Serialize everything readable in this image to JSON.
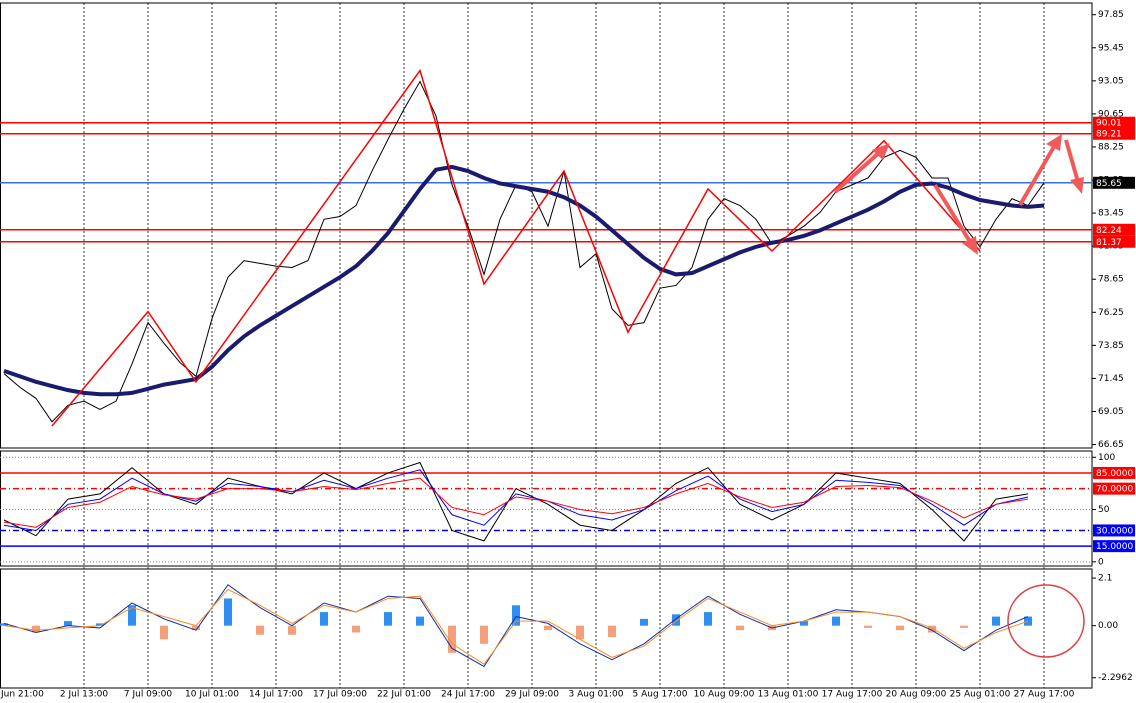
{
  "chart_data": [
    {
      "type": "line",
      "categories": [
        null,
        "Jun 21:00",
        null,
        null,
        null,
        "2 Jul 13:00",
        null,
        null,
        null,
        "7 Jul 09:00",
        null,
        null,
        null,
        "10 Jul 01:00",
        null,
        null,
        null,
        "14 Jul 17:00",
        null,
        null,
        null,
        "17 Jul 09:00",
        null,
        null,
        null,
        "22 Jul 01:00",
        null,
        null,
        null,
        "24 Jul 17:00",
        null,
        null,
        null,
        "29 Jul 09:00",
        null,
        null,
        null,
        "3 Aug 01:00",
        null,
        null,
        null,
        "5 Aug 17:00",
        null,
        null,
        null,
        "10 Aug 09:00",
        null,
        null,
        null,
        "13 Aug 01:00",
        null,
        null,
        null,
        "17 Aug 17:00",
        null,
        null,
        null,
        "20 Aug 09:00",
        null,
        null,
        null,
        "25 Aug 01:00",
        null,
        null,
        null,
        "27 Aug 17:00"
      ],
      "series": [
        {
          "color": "#000000",
          "values": [
            71.8,
            70.8,
            70.0,
            68.3,
            69.5,
            69.8,
            69.2,
            69.8,
            72.5,
            75.5,
            74.0,
            72.6,
            71.6,
            75.8,
            78.8,
            80.0,
            79.8,
            79.6,
            79.5,
            80.0,
            83.0,
            83.2,
            84.0,
            86.5,
            88.8,
            91.0,
            93.0,
            90.5,
            85.5,
            82.5,
            79.0,
            83.0,
            85.5,
            85.0,
            82.5,
            86.5,
            79.5,
            80.5,
            76.5,
            75.3,
            75.5,
            78.0,
            78.2,
            79.5,
            83.0,
            84.5,
            84.0,
            83.0,
            81.2,
            81.8,
            82.5,
            83.5,
            85.0,
            85.5,
            86.0,
            87.5,
            88.0,
            87.5,
            86.0,
            86.0,
            82.5,
            81.0,
            83.0,
            84.5,
            84.0,
            85.65
          ]
        },
        {
          "color": "#1a1a6e",
          "values": [
            72.0,
            71.6,
            71.2,
            70.9,
            70.6,
            70.4,
            70.3,
            70.3,
            70.4,
            70.7,
            71.0,
            71.2,
            71.4,
            72.3,
            73.5,
            74.5,
            75.3,
            76.0,
            76.7,
            77.4,
            78.1,
            78.8,
            79.6,
            80.7,
            82.0,
            83.6,
            85.2,
            86.6,
            86.8,
            86.5,
            86.0,
            85.6,
            85.4,
            85.2,
            85.0,
            84.6,
            84.0,
            83.2,
            82.2,
            81.2,
            80.2,
            79.4,
            79.0,
            79.1,
            79.6,
            80.1,
            80.6,
            81.0,
            81.3,
            81.5,
            81.8,
            82.2,
            82.7,
            83.2,
            83.7,
            84.3,
            85.0,
            85.5,
            85.6,
            85.3,
            84.8,
            84.4,
            84.2,
            84.0,
            83.9,
            84.0
          ]
        }
      ],
      "pivots": {
        "color": "#ff0000",
        "x": [
          3,
          9,
          12,
          26,
          30,
          35,
          39,
          44,
          48,
          55,
          61
        ],
        "values": [
          68.0,
          76.3,
          71.2,
          93.8,
          78.3,
          86.5,
          74.8,
          85.2,
          80.7,
          88.7,
          80.7
        ]
      },
      "levels": [
        {
          "value": 90.01,
          "color": "#ff0000"
        },
        {
          "value": 89.21,
          "color": "#ff0000"
        },
        {
          "value": 85.65,
          "color": "#3a6fd8",
          "label_color": "#000000"
        },
        {
          "value": 82.24,
          "color": "#ff0000"
        },
        {
          "value": 81.37,
          "color": "#ff0000"
        }
      ],
      "ylim": [
        66.4,
        98.7
      ],
      "yticks": [
        97.85,
        95.45,
        93.05,
        90.65,
        88.25,
        85.85,
        83.45,
        81.05,
        78.65,
        76.25,
        73.85,
        71.45,
        69.05,
        66.65
      ],
      "grid": true
    },
    {
      "type": "line",
      "x": [
        0,
        2,
        4,
        6,
        8,
        10,
        12,
        14,
        16,
        18,
        20,
        22,
        24,
        26,
        28,
        30,
        32,
        34,
        36,
        38,
        40,
        42,
        44,
        46,
        48,
        50,
        52,
        54,
        56,
        58,
        60,
        62,
        64
      ],
      "series": [
        {
          "color": "#000000",
          "values": [
            40,
            25,
            60,
            65,
            90,
            65,
            55,
            80,
            72,
            65,
            85,
            70,
            85,
            95,
            30,
            20,
            70,
            55,
            35,
            30,
            50,
            75,
            90,
            55,
            40,
            55,
            85,
            80,
            75,
            50,
            20,
            60,
            65
          ]
        },
        {
          "color": "#0000ff",
          "values": [
            35,
            30,
            55,
            60,
            80,
            65,
            58,
            75,
            72,
            67,
            78,
            70,
            80,
            88,
            45,
            35,
            65,
            58,
            45,
            40,
            50,
            68,
            82,
            60,
            48,
            55,
            78,
            76,
            73,
            55,
            35,
            55,
            62
          ]
        },
        {
          "color": "#ff0000",
          "values": [
            38,
            33,
            52,
            57,
            72,
            64,
            60,
            70,
            70,
            67,
            72,
            69,
            75,
            80,
            52,
            45,
            62,
            58,
            50,
            46,
            52,
            65,
            75,
            62,
            52,
            57,
            72,
            73,
            71,
            58,
            42,
            55,
            60
          ]
        }
      ],
      "levels": [
        {
          "value": 85,
          "label": "85.0000",
          "color": "#ff0000",
          "style": "solid"
        },
        {
          "value": 70,
          "label": "70.0000",
          "color": "#ff0000",
          "style": "dashdot"
        },
        {
          "value": 30,
          "label": "30.0000",
          "color": "#0000ff",
          "style": "dashdot"
        },
        {
          "value": 15,
          "label": "15.0000",
          "color": "#0000ff",
          "style": "solid"
        }
      ],
      "ylim": [
        -4,
        106
      ],
      "yticks": [
        0,
        50,
        100
      ],
      "grid": true
    },
    {
      "type": "combo",
      "x": [
        0,
        2,
        4,
        6,
        8,
        10,
        12,
        14,
        16,
        18,
        20,
        22,
        24,
        26,
        28,
        30,
        32,
        34,
        36,
        38,
        40,
        42,
        44,
        46,
        48,
        50,
        52,
        54,
        56,
        58,
        60,
        62,
        64
      ],
      "series": [
        {
          "kind": "bar",
          "color": "#2e8ff0",
          "negative_color": "#f5a07a",
          "values": [
            0.1,
            -0.3,
            0.2,
            0.1,
            0.9,
            -0.6,
            -0.2,
            1.2,
            -0.4,
            -0.4,
            0.6,
            -0.3,
            0.6,
            0.4,
            -1.2,
            -0.8,
            0.9,
            -0.2,
            -0.6,
            -0.5,
            0.3,
            0.5,
            0.6,
            -0.2,
            -0.2,
            0.2,
            0.4,
            -0.1,
            -0.2,
            -0.3,
            -0.1,
            0.4,
            0.4
          ]
        },
        {
          "kind": "line",
          "color": "#0a2fb8",
          "values": [
            0.1,
            -0.3,
            0.0,
            -0.1,
            1.0,
            0.3,
            -0.2,
            1.8,
            0.8,
            0.0,
            1.0,
            0.6,
            1.3,
            1.2,
            -1.0,
            -1.8,
            0.4,
            0.1,
            -0.8,
            -1.5,
            -0.8,
            0.3,
            1.3,
            0.5,
            -0.1,
            0.2,
            0.7,
            0.6,
            0.4,
            -0.2,
            -1.1,
            -0.2,
            0.4
          ]
        },
        {
          "kind": "line",
          "color": "#ff8c1a",
          "values": [
            0.0,
            -0.2,
            -0.1,
            0.0,
            0.8,
            0.4,
            0.0,
            1.6,
            0.9,
            0.1,
            0.9,
            0.6,
            1.2,
            1.3,
            -0.8,
            -1.7,
            0.2,
            0.2,
            -0.6,
            -1.4,
            -0.9,
            0.2,
            1.2,
            0.6,
            0.0,
            0.2,
            0.6,
            0.6,
            0.4,
            -0.1,
            -1.0,
            -0.3,
            0.2
          ]
        }
      ],
      "ylim": [
        -2.75,
        2.5
      ],
      "yticks": [
        2.1,
        {
          "value": 0,
          "label": "0.00"
        },
        -2.2962
      ]
    }
  ]
}
